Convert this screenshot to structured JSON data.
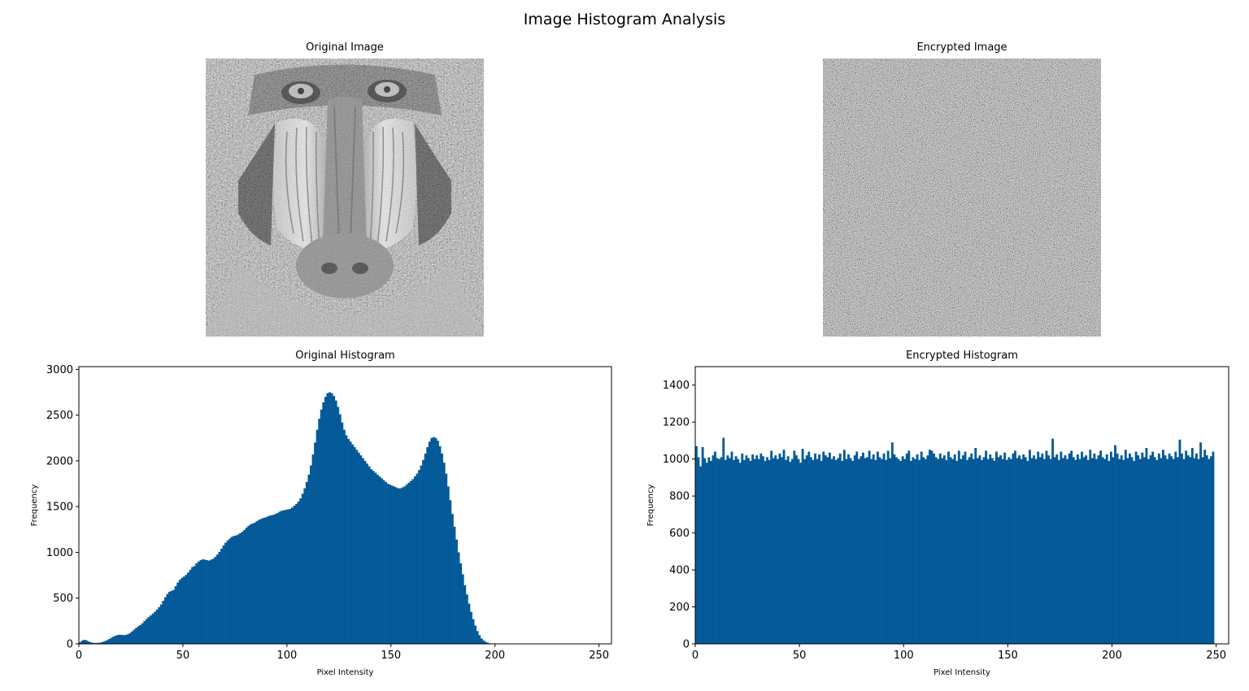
{
  "suptitle": "Image Histogram Analysis",
  "panels": {
    "original_image": {
      "title": "Original Image"
    },
    "encrypted_image": {
      "title": "Encrypted Image"
    }
  },
  "colors": {
    "bar": "#045a99",
    "axis": "#000000",
    "background": "#ffffff"
  },
  "chart_data": [
    {
      "type": "bar",
      "title": "Original Histogram",
      "xlabel": "Pixel Intensity",
      "ylabel": "Frequency",
      "xlim": [
        0,
        256
      ],
      "ylim": [
        0,
        3030
      ],
      "xticks": [
        "0",
        "50",
        "100",
        "150",
        "200",
        "250"
      ],
      "yticks": [
        "0",
        "500",
        "1000",
        "1500",
        "2000",
        "2500",
        "3000"
      ],
      "bin_width": 1,
      "series": [
        {
          "values": [
            18,
            35,
            44,
            40,
            28,
            18,
            12,
            10,
            10,
            12,
            15,
            22,
            30,
            40,
            52,
            65,
            78,
            88,
            96,
            100,
            98,
            95,
            98,
            105,
            118,
            135,
            155,
            175,
            192,
            205,
            225,
            250,
            272,
            292,
            310,
            330,
            350,
            375,
            400,
            430,
            470,
            510,
            545,
            570,
            580,
            590,
            630,
            670,
            700,
            720,
            735,
            755,
            780,
            810,
            840,
            850,
            880,
            900,
            915,
            925,
            920,
            915,
            910,
            920,
            930,
            950,
            975,
            1005,
            1040,
            1075,
            1105,
            1130,
            1150,
            1170,
            1180,
            1185,
            1195,
            1210,
            1225,
            1245,
            1270,
            1290,
            1305,
            1315,
            1325,
            1340,
            1355,
            1365,
            1375,
            1380,
            1390,
            1400,
            1405,
            1410,
            1420,
            1430,
            1445,
            1455,
            1460,
            1465,
            1470,
            1475,
            1490,
            1510,
            1530,
            1555,
            1590,
            1640,
            1700,
            1770,
            1850,
            1950,
            2070,
            2200,
            2340,
            2460,
            2560,
            2640,
            2700,
            2740,
            2750,
            2740,
            2710,
            2660,
            2590,
            2510,
            2420,
            2340,
            2280,
            2240,
            2210,
            2180,
            2150,
            2120,
            2090,
            2060,
            2030,
            2000,
            1970,
            1940,
            1910,
            1890,
            1870,
            1850,
            1830,
            1810,
            1790,
            1770,
            1750,
            1740,
            1730,
            1720,
            1710,
            1700,
            1700,
            1710,
            1720,
            1740,
            1760,
            1780,
            1800,
            1830,
            1860,
            1900,
            1950,
            2010,
            2080,
            2150,
            2210,
            2250,
            2260,
            2250,
            2220,
            2160,
            2080,
            1980,
            1860,
            1720,
            1570,
            1420,
            1280,
            1140,
            1000,
            880,
            760,
            640,
            540,
            440,
            350,
            270,
            200,
            140,
            95,
            60,
            38,
            22,
            12,
            6,
            3,
            2,
            1,
            0,
            0,
            0,
            0,
            0,
            0,
            0,
            0,
            0,
            0,
            0,
            0,
            0,
            0,
            0,
            0,
            0,
            0,
            0,
            0,
            0,
            0,
            0,
            0,
            0,
            0,
            0,
            0,
            0,
            0,
            0,
            0,
            0,
            0,
            0,
            0,
            0,
            0,
            0,
            0,
            0,
            0,
            0,
            0,
            0,
            0,
            0,
            0,
            0
          ]
        }
      ]
    },
    {
      "type": "bar",
      "title": "Encrypted Histogram",
      "xlabel": "Pixel Intensity",
      "ylabel": "Frequency",
      "xlim": [
        0,
        256
      ],
      "ylim": [
        0,
        1500
      ],
      "xticks": [
        "0",
        "50",
        "100",
        "150",
        "200",
        "250"
      ],
      "yticks": [
        "0",
        "200",
        "400",
        "600",
        "800",
        "1000",
        "1200",
        "1400"
      ],
      "bin_width": 1,
      "series": [
        {
          "values": [
            1070,
            1010,
            960,
            1065,
            1005,
            980,
            1010,
            990,
            1020,
            1040,
            1005,
            1000,
            1010,
            1115,
            995,
            1020,
            1005,
            1040,
            995,
            1015,
            1000,
            980,
            1030,
            995,
            1020,
            1005,
            990,
            1025,
            1000,
            1020,
            1000,
            1030,
            1015,
            990,
            1010,
            995,
            1045,
            1005,
            1020,
            1000,
            1030,
            1010,
            1050,
            995,
            1015,
            985,
            1000,
            1045,
            1020,
            1000,
            980,
            1055,
            1000,
            1020,
            1040,
            1010,
            995,
            1030,
            1000,
            1025,
            990,
            1040,
            1020,
            1010,
            1035,
            1000,
            1015,
            995,
            1005,
            1030,
            990,
            1050,
            1000,
            1025,
            1005,
            990,
            1020,
            1040,
            1000,
            1015,
            1035,
            1005,
            1010,
            1045,
            1000,
            1025,
            995,
            1040,
            1010,
            1000,
            1030,
            995,
            1045,
            1005,
            1090,
            1025,
            1010,
            1000,
            990,
            1015,
            1000,
            1030,
            1045,
            990,
            1010,
            1000,
            1025,
            995,
            1040,
            1010,
            1000,
            1020,
            1050,
            1045,
            1030,
            1010,
            1000,
            1030,
            1005,
            1020,
            995,
            1040,
            1010,
            1000,
            1025,
            990,
            1045,
            1000,
            1020,
            1040,
            995,
            1010,
            1030,
            1000,
            1060,
            1005,
            1020,
            995,
            1010,
            1045,
            1000,
            1025,
            1005,
            990,
            1040,
            1010,
            1020,
            1000,
            1035,
            995,
            1010,
            1000,
            1030,
            1045,
            1005,
            1020,
            1000,
            1025,
            1010,
            990,
            1050,
            1005,
            1020,
            1000,
            1040,
            1010,
            1030,
            1000,
            1045,
            1020,
            1000,
            1110,
            1010,
            1025,
            995,
            1040,
            1005,
            1020,
            1000,
            1030,
            1045,
            1010,
            995,
            1025,
            1000,
            1040,
            1010,
            1020,
            995,
            1050,
            1005,
            1030,
            1000,
            1020,
            1045,
            1010,
            1000,
            1025,
            990,
            1040,
            1010,
            1075,
            1030,
            1000,
            1020,
            995,
            1050,
            1005,
            1030,
            1010,
            990,
            1040,
            1020,
            1000,
            1035,
            1010,
            1060,
            1000,
            1020,
            1040,
            1010,
            995,
            1030,
            1005,
            1050,
            1020,
            1000,
            1030,
            1015,
            1000,
            1040,
            1010,
            1105,
            1030,
            1000,
            1045,
            1020,
            1010,
            1060,
            1005,
            1030,
            1000,
            1090,
            1010,
            1050,
            1020,
            1000,
            1015,
            1040
          ]
        }
      ]
    }
  ]
}
